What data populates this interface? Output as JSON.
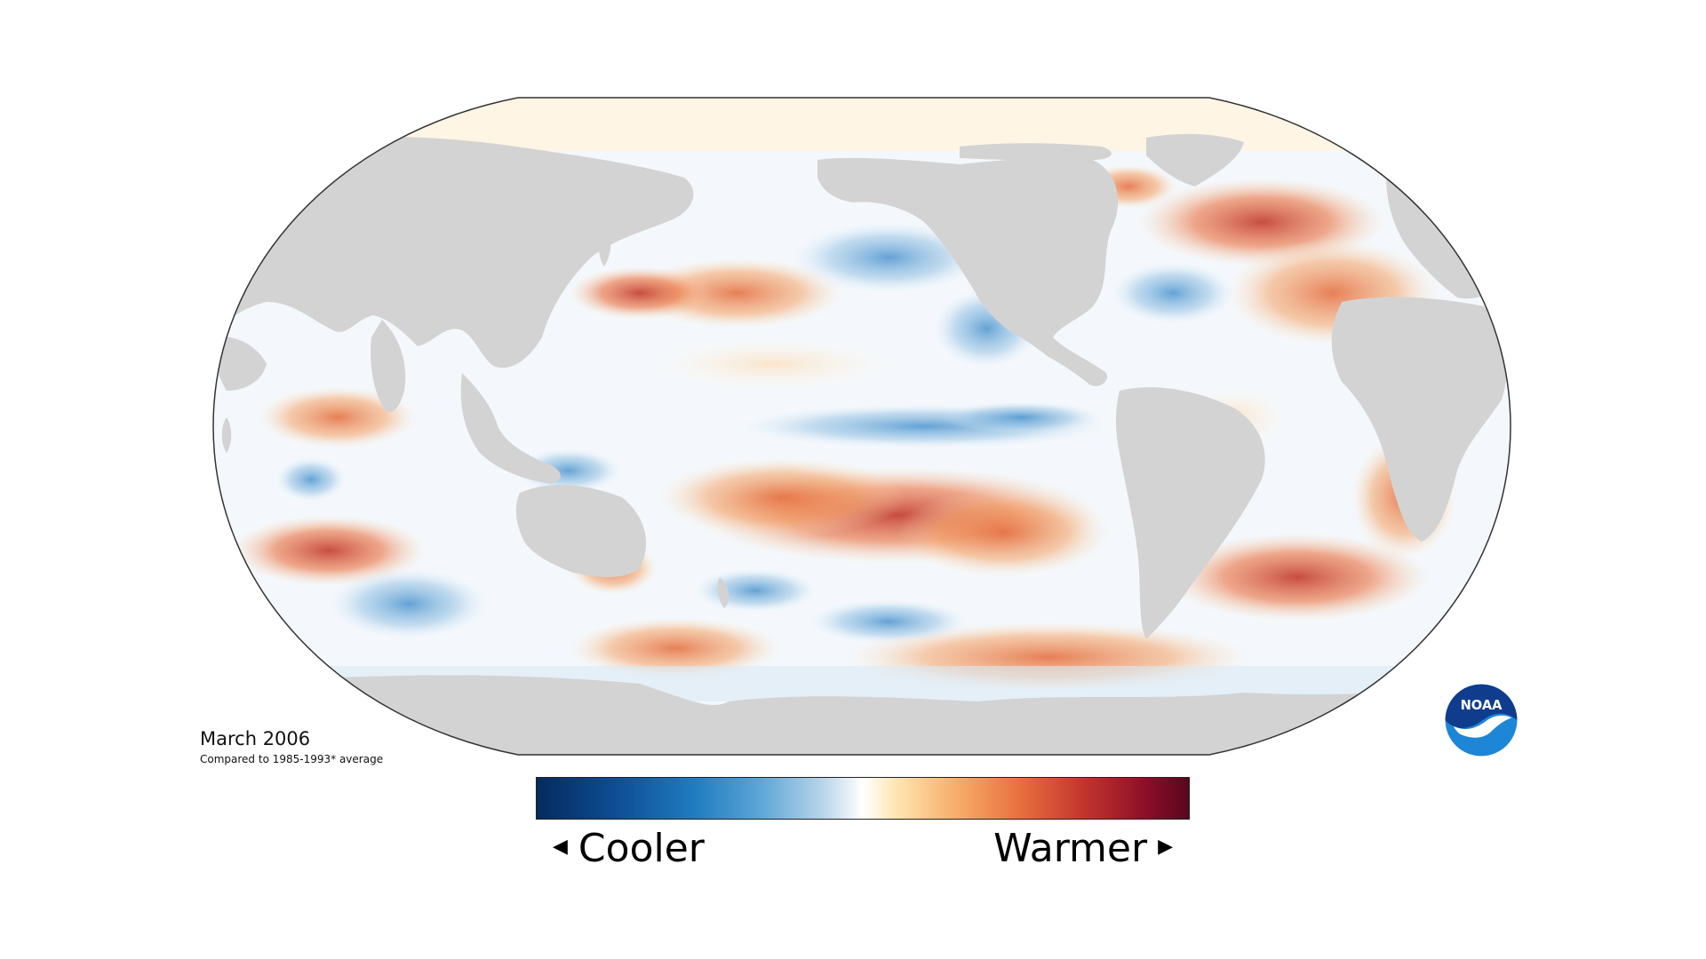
{
  "map": {
    "projection": "robinson",
    "land_color": "#d3d3d3",
    "ocean_neutral_color": "#ffffff",
    "outline_color": "#333333"
  },
  "caption": {
    "title": "March 2006",
    "subtitle": "Compared to 1985-1993* average"
  },
  "legend": {
    "low_label": "Cooler",
    "high_label": "Warmer",
    "left_arrow_icon": "triangle-left-icon",
    "right_arrow_icon": "triangle-right-icon",
    "colors": [
      "#052a5e",
      "#1f7bc0",
      "#b9d6ea",
      "#ffffff",
      "#f6b06b",
      "#c2342c",
      "#5a0620"
    ]
  },
  "logo": {
    "text": "NOAA",
    "icon": "noaa-logo-icon",
    "colors": [
      "#0f3c8c",
      "#1d86d6",
      "#ffffff"
    ]
  }
}
